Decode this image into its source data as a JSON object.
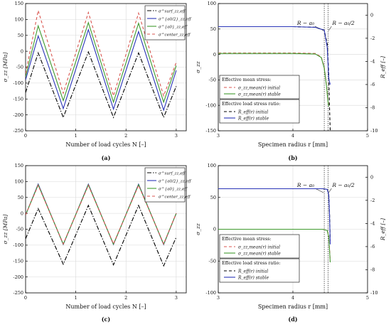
{
  "chart_data": [
    {
      "panel": "(a)",
      "type": "line",
      "xlabel": "Number of load cycles N [–]",
      "ylabel": "σ_zz [MPa]",
      "xlim": [
        0,
        3.2
      ],
      "ylim": [
        -250,
        150
      ],
      "xticks": [
        0,
        1,
        2,
        3
      ],
      "yticks": [
        -250,
        -200,
        -150,
        -100,
        -50,
        0,
        50,
        100,
        150
      ],
      "grid": true,
      "legend": "top-right",
      "series": [
        {
          "name": "σ^surf_zz,eff",
          "color": "#000000",
          "dash": "6,2,1.5,2",
          "x": [
            0,
            0.25,
            0.75,
            1.25,
            1.75,
            2.25,
            2.75,
            3.0
          ],
          "y": [
            -130,
            -5,
            -208,
            -2,
            -208,
            -5,
            -208,
            -110
          ]
        },
        {
          "name": "σ^{a0/2}_zz,eff",
          "color": "#2a35b8",
          "dash": "",
          "x": [
            0,
            0.25,
            0.75,
            1.25,
            1.75,
            2.25,
            2.75,
            3.0
          ],
          "y": [
            -90,
            48,
            -180,
            68,
            -182,
            62,
            -185,
            -60
          ]
        },
        {
          "name": "σ^{a0}_zz,eff",
          "color": "#3f9a2e",
          "dash": "",
          "x": [
            0,
            0.25,
            0.75,
            1.25,
            1.75,
            2.25,
            2.75,
            3.0
          ],
          "y": [
            -80,
            80,
            -155,
            90,
            -160,
            88,
            -160,
            -45
          ]
        },
        {
          "name": "σ^center_zz,eff",
          "color": "#d9554f",
          "dash": "4,3",
          "x": [
            0,
            0.25,
            0.75,
            1.25,
            1.75,
            2.25,
            2.75,
            3.0
          ],
          "y": [
            -70,
            128,
            -132,
            122,
            -140,
            120,
            -140,
            -35
          ]
        }
      ]
    },
    {
      "panel": "(b)",
      "type": "line",
      "xlabel": "Specimen radius r [mm]",
      "ylabel": "σ_zz",
      "y2label": "R_eff [–]",
      "xlim": [
        3,
        5
      ],
      "ylim": [
        -150,
        100
      ],
      "y2lim": [
        -10,
        1
      ],
      "xticks": [
        3,
        4,
        5
      ],
      "yticks": [
        -150,
        -100,
        -50,
        0,
        50,
        100
      ],
      "y2ticks": [
        0,
        -2,
        -4,
        -6,
        -8,
        -10
      ],
      "grid": true,
      "annotations": [
        "R − a₀",
        "R − a₀/2"
      ],
      "legend_blocks": [
        {
          "title": "Effective mean stress:",
          "entries": [
            "σ_zz,mean(r) initial",
            "σ_zz,mean(r) stable"
          ]
        },
        {
          "title": "Effective load stress ratio:",
          "entries": [
            "R_eff(r) initial",
            "R_eff(r) stable"
          ]
        }
      ],
      "series": [
        {
          "name": "σ_zz,mean(r) initial",
          "color": "#d9554f",
          "dash": "4,3",
          "axis": "left",
          "x": [
            3.0,
            4.0,
            4.3,
            4.38,
            4.42,
            4.45,
            4.47,
            4.48
          ],
          "y": [
            3,
            3,
            2,
            -5,
            -25,
            -60,
            -90,
            -100
          ]
        },
        {
          "name": "σ_zz,mean(r) stable",
          "color": "#3f9a2e",
          "dash": "",
          "axis": "left",
          "x": [
            3.0,
            4.0,
            4.3,
            4.38,
            4.42,
            4.45,
            4.47,
            4.48
          ],
          "y": [
            2,
            2,
            1,
            -6,
            -27,
            -62,
            -92,
            -102
          ]
        },
        {
          "name": "R_eff(r) initial",
          "color": "#000000",
          "dash": "4,3",
          "axis": "right",
          "x": [
            3.0,
            4.0,
            4.3,
            4.42,
            4.46,
            4.48,
            4.49,
            4.5
          ],
          "y": [
            -1.0,
            -1.0,
            -1.05,
            -1.3,
            -2.5,
            -5,
            -8,
            -10
          ]
        },
        {
          "name": "R_eff(r) stable",
          "color": "#2a35b8",
          "dash": "",
          "axis": "right",
          "x": [
            3.0,
            4.0,
            4.3,
            4.42,
            4.46,
            4.48,
            4.5
          ],
          "y": [
            -1.0,
            -1.0,
            -1.05,
            -1.3,
            -2.8,
            -5.5,
            -6.0
          ]
        }
      ]
    },
    {
      "panel": "(c)",
      "type": "line",
      "xlabel": "Number of load cycles N [–]",
      "ylabel": "σ_zz [MPa]",
      "xlim": [
        0,
        3.2
      ],
      "ylim": [
        -250,
        150
      ],
      "xticks": [
        0,
        1,
        2,
        3
      ],
      "yticks": [
        -250,
        -200,
        -150,
        -100,
        -50,
        0,
        50,
        100,
        150
      ],
      "grid": true,
      "legend": "top-right",
      "series": [
        {
          "name": "σ^surf_zz,eff",
          "color": "#000000",
          "dash": "6,2,1.5,2",
          "x": [
            0,
            0.25,
            0.75,
            1.25,
            1.75,
            2.25,
            2.75,
            3.0
          ],
          "y": [
            -80,
            15,
            -160,
            25,
            -162,
            25,
            -165,
            -75
          ]
        },
        {
          "name": "σ^{a0/2}_zz,eff",
          "color": "#2a35b8",
          "dash": "",
          "x": [
            0,
            0.25,
            0.75,
            1.25,
            1.75,
            2.25,
            2.75,
            3.0
          ],
          "y": [
            -5,
            92,
            -98,
            92,
            -98,
            92,
            -98,
            0
          ]
        },
        {
          "name": "σ^{a0}_zz,eff",
          "color": "#3f9a2e",
          "dash": "",
          "x": [
            0,
            0.25,
            0.75,
            1.25,
            1.75,
            2.25,
            2.75,
            3.0
          ],
          "y": [
            -5,
            90,
            -97,
            90,
            -97,
            90,
            -97,
            0
          ]
        },
        {
          "name": "σ^center_zz,eff",
          "color": "#d9554f",
          "dash": "4,3",
          "x": [
            0,
            0.25,
            0.75,
            1.25,
            1.75,
            2.25,
            2.75,
            3.0
          ],
          "y": [
            -5,
            88,
            -96,
            88,
            -96,
            88,
            -96,
            0
          ]
        }
      ]
    },
    {
      "panel": "(d)",
      "type": "line",
      "xlabel": "Specimen radius r [mm]",
      "ylabel": "σ_zz",
      "y2label": "R_eff [–]",
      "xlim": [
        3,
        5
      ],
      "ylim": [
        -100,
        100
      ],
      "y2lim": [
        -10,
        1
      ],
      "xticks": [
        3,
        4,
        5
      ],
      "yticks": [
        -100,
        -50,
        0,
        50,
        100
      ],
      "y2ticks": [
        0,
        -2,
        -4,
        -6,
        -8,
        -10
      ],
      "grid": true,
      "annotations": [
        "R − a₀",
        "R − a₀/2"
      ],
      "legend_blocks": [
        {
          "title": "Effective mean stress:",
          "entries": [
            "σ_zz,mean(r) initial",
            "σ_zz,mean(r) stable"
          ]
        },
        {
          "title": "Effective load stress ratio:",
          "entries": [
            "R_eff(r) initial",
            "R_eff(r) stable"
          ]
        }
      ],
      "series": [
        {
          "name": "σ_zz,mean(r) initial",
          "color": "#d9554f",
          "dash": "4,3",
          "axis": "left",
          "x": [
            3.0,
            4.0,
            4.4,
            4.46,
            4.48,
            4.49,
            4.5
          ],
          "y": [
            0,
            0,
            0,
            -2,
            -10,
            -30,
            -50
          ]
        },
        {
          "name": "σ_zz,mean(r) stable",
          "color": "#3f9a2e",
          "dash": "",
          "axis": "left",
          "x": [
            3.0,
            4.0,
            4.4,
            4.46,
            4.48,
            4.49,
            4.5
          ],
          "y": [
            0,
            0,
            0,
            -2,
            -12,
            -32,
            -52
          ]
        },
        {
          "name": "R_eff(r) initial",
          "color": "#000000",
          "dash": "4,3",
          "axis": "right",
          "x": [
            3.0,
            4.0,
            4.4,
            4.46,
            4.48,
            4.49,
            4.5
          ],
          "y": [
            -1.0,
            -1.0,
            -1.0,
            -1.05,
            -1.4,
            -3,
            -5.5
          ]
        },
        {
          "name": "R_eff(r) stable",
          "color": "#2a35b8",
          "dash": "",
          "axis": "right",
          "x": [
            3.0,
            4.0,
            4.4,
            4.46,
            4.48,
            4.49,
            4.5
          ],
          "y": [
            -1.0,
            -1.0,
            -1.0,
            -1.05,
            -1.5,
            -3.2,
            -5.8
          ]
        }
      ]
    }
  ]
}
